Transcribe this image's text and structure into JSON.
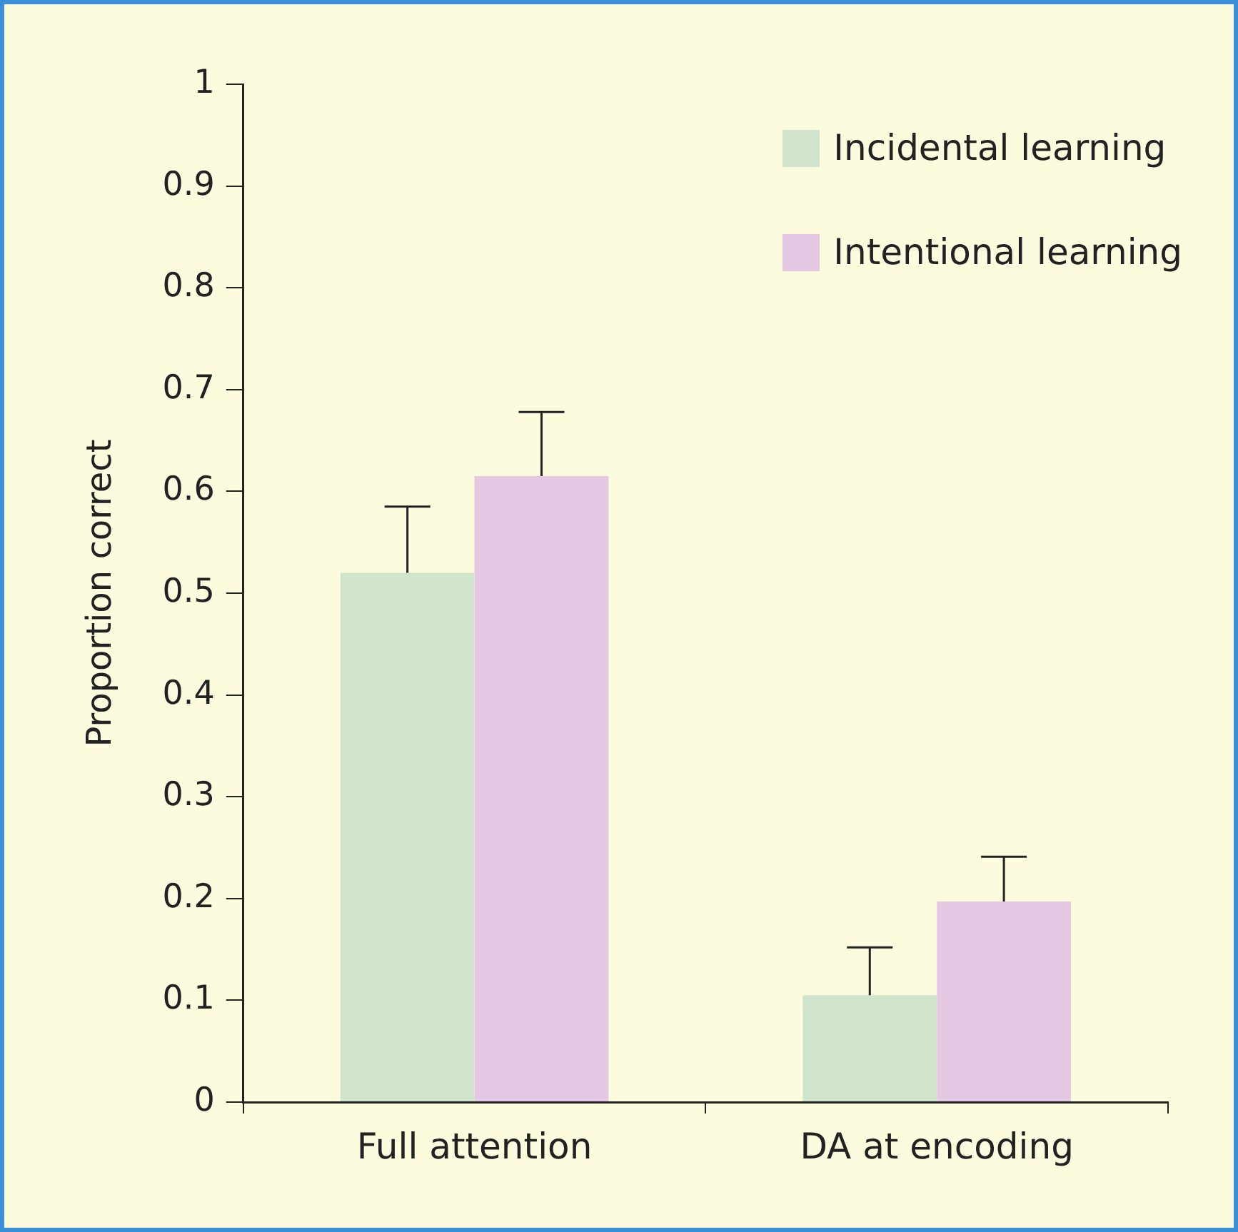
{
  "chart_data": {
    "type": "bar",
    "ylabel": "Proportion correct",
    "categories": [
      "Full attention",
      "DA at encoding"
    ],
    "series": [
      {
        "name": "Incidental learning",
        "color": "#d0e4cc",
        "values": [
          0.52,
          0.105
        ],
        "errors": [
          [
            0.52,
            0.585
          ],
          [
            0.105,
            0.152
          ]
        ]
      },
      {
        "name": "Intentional learning",
        "color": "#e4c8e4",
        "values": [
          0.615,
          0.197
        ],
        "errors": [
          [
            0.615,
            0.678
          ],
          [
            0.197,
            0.241
          ]
        ]
      }
    ],
    "ylim": [
      0,
      1
    ],
    "yticks": [
      0,
      0.1,
      0.2,
      0.3,
      0.4,
      0.5,
      0.6,
      0.7,
      0.8,
      0.9,
      1
    ],
    "grid": false,
    "legend": "top right"
  }
}
